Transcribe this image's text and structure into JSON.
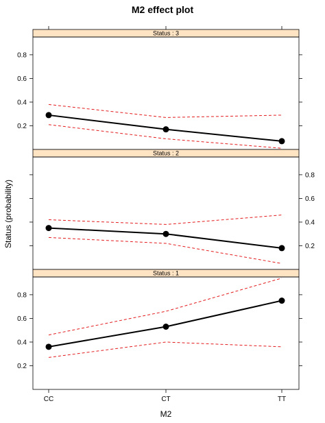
{
  "chart_data": {
    "type": "line",
    "title": "M2 effect plot",
    "xlabel": "M2",
    "ylabel": "Status (probability)",
    "categories": [
      "CC",
      "CT",
      "TT"
    ],
    "yticks": [
      0.2,
      0.4,
      0.6,
      0.8
    ],
    "ylim": [
      0.0,
      0.95
    ],
    "grid": false,
    "colors": {
      "fit": "#000000",
      "ci": "#e41a1c",
      "strip_fill": "#ffe4c4"
    },
    "panels": [
      {
        "strip": "Status : 3",
        "fit": [
          0.29,
          0.17,
          0.07
        ],
        "lower": [
          0.21,
          0.09,
          0.01
        ],
        "upper": [
          0.38,
          0.27,
          0.29
        ]
      },
      {
        "strip": "Status : 2",
        "fit": [
          0.35,
          0.3,
          0.18
        ],
        "lower": [
          0.27,
          0.22,
          0.05
        ],
        "upper": [
          0.42,
          0.38,
          0.46
        ]
      },
      {
        "strip": "Status : 1",
        "fit": [
          0.36,
          0.53,
          0.75
        ],
        "lower": [
          0.27,
          0.4,
          0.36
        ],
        "upper": [
          0.46,
          0.66,
          0.94
        ]
      }
    ]
  }
}
